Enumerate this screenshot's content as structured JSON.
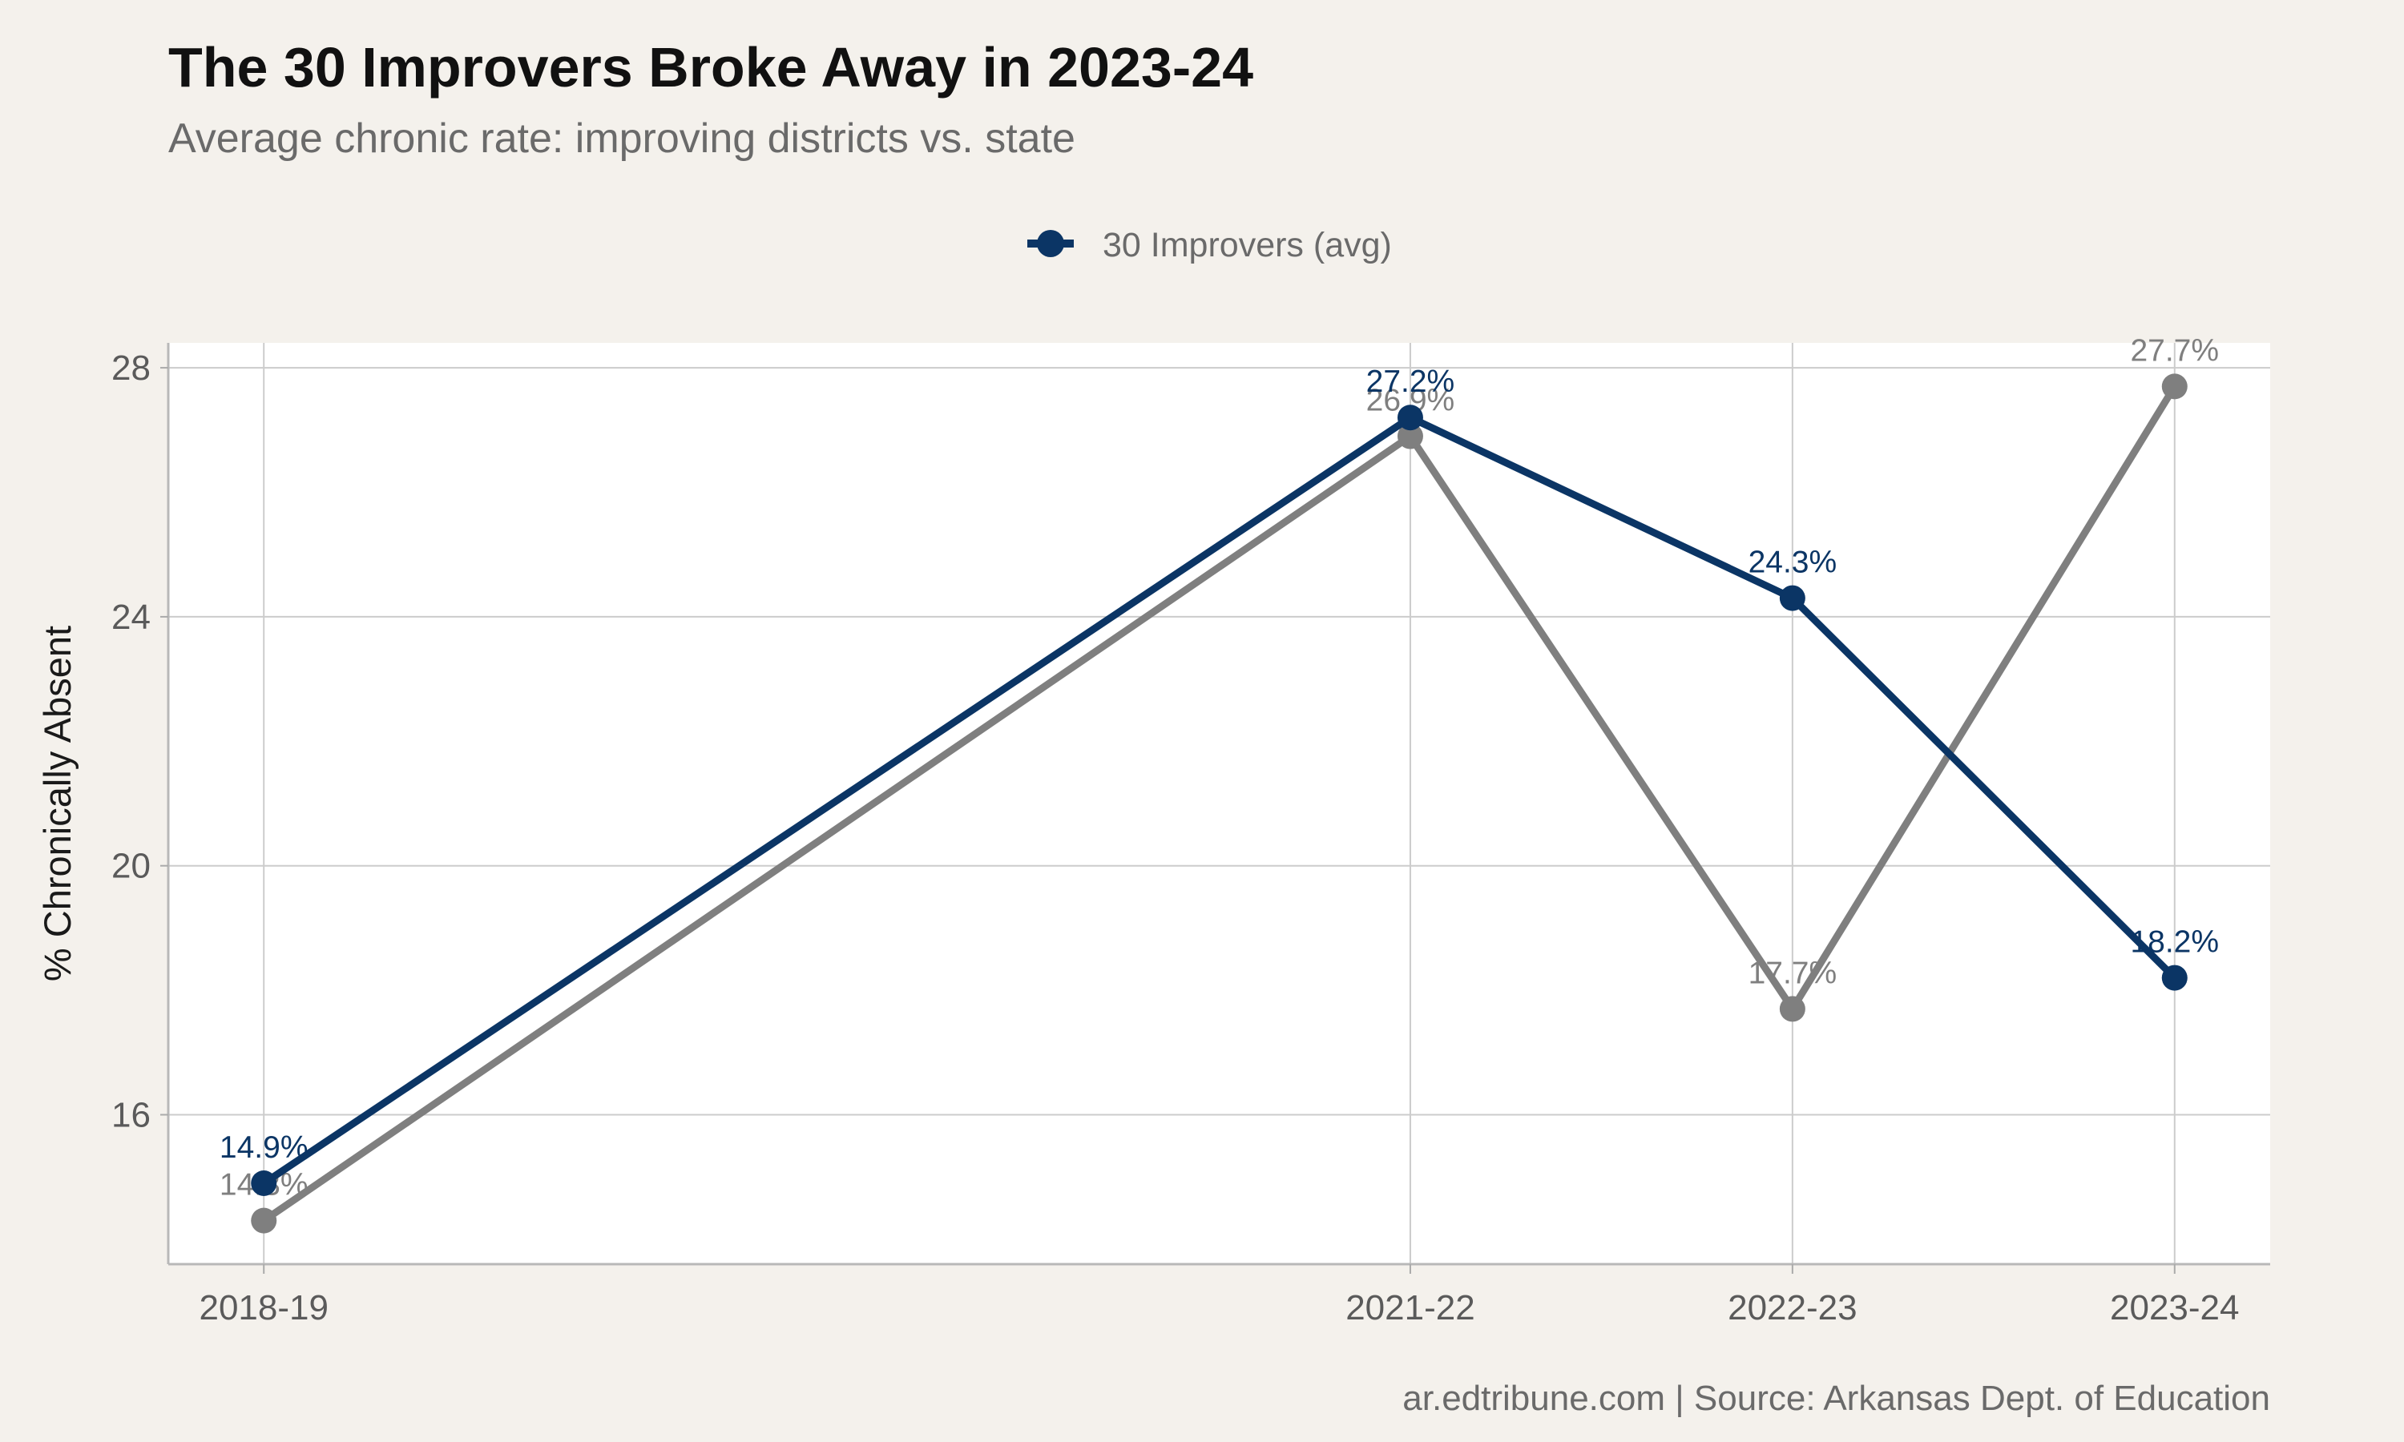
{
  "chart_data": {
    "type": "line",
    "title": "The 30 Improvers Broke Away in 2023-24",
    "subtitle": "Average chronic rate: improving districts vs. state",
    "xlabel": "",
    "ylabel": "% Chronically Absent",
    "caption": "ar.edtribune.com | Source: Arkansas Dept. of Education",
    "x": [
      "2018-19",
      "2021-22",
      "2022-23",
      "2023-24"
    ],
    "x_numeric": [
      2018,
      2021,
      2022,
      2023
    ],
    "ylim": [
      13.6,
      28.4
    ],
    "yticks": [
      16,
      20,
      24,
      28
    ],
    "grid": true,
    "legend_position": "top",
    "series": [
      {
        "name": "",
        "color": "#7f7f7f",
        "values": [
          14.3,
          26.9,
          17.7,
          27.7
        ],
        "labels": [
          "14.3%",
          "26.9%",
          "17.7%",
          "27.7%"
        ]
      },
      {
        "name": "30 Improvers (avg)",
        "color": "#0b3565",
        "values": [
          14.9,
          27.2,
          24.3,
          18.2
        ],
        "labels": [
          "14.9%",
          "27.2%",
          "24.3%",
          "18.2%"
        ]
      }
    ]
  }
}
